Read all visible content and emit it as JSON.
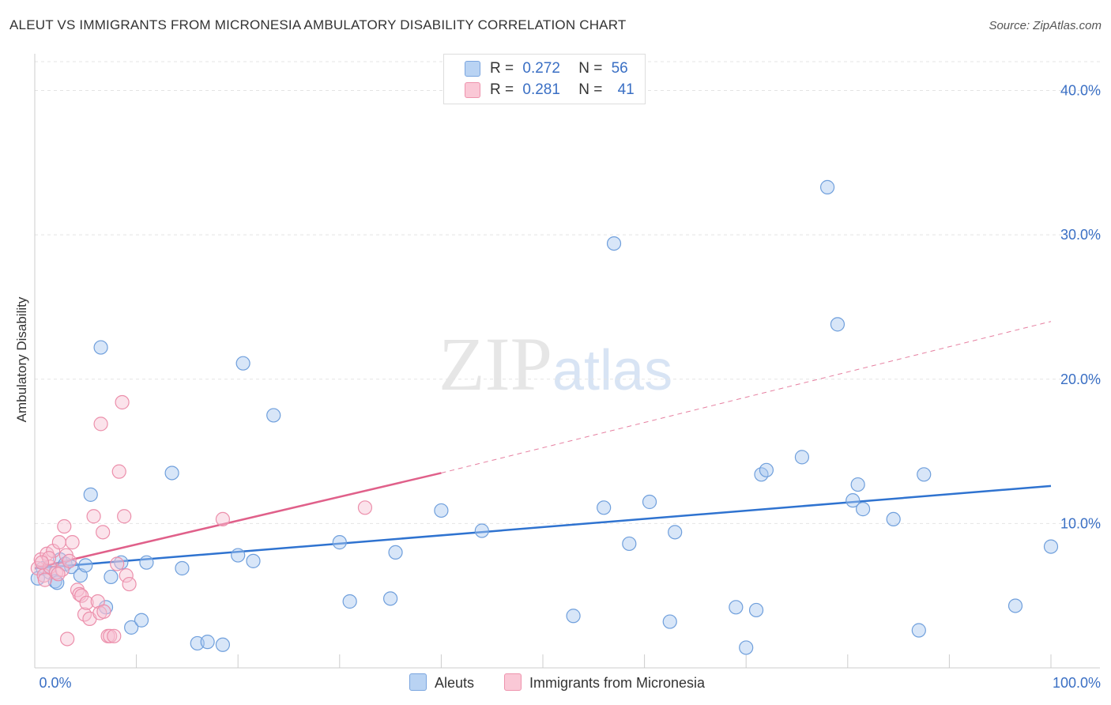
{
  "title": "ALEUT VS IMMIGRANTS FROM MICRONESIA AMBULATORY DISABILITY CORRELATION CHART",
  "source": "Source: ZipAtlas.com",
  "watermark": {
    "zip": "ZIP",
    "atlas": "atlas"
  },
  "legend": {
    "r_label": "R =",
    "n_label": "N =",
    "rows": [
      {
        "r": "0.272",
        "n": "56",
        "color": "#b9d3f3",
        "stroke": "#7aa5df"
      },
      {
        "r": "0.281",
        "n": "41",
        "color": "#fac8d6",
        "stroke": "#ee93ad"
      }
    ]
  },
  "bottom_legend": {
    "aleuts": "Aleuts",
    "micronesia": "Immigrants from Micronesia"
  },
  "chart_data": {
    "type": "scatter",
    "title": "ALEUT VS IMMIGRANTS FROM MICRONESIA AMBULATORY DISABILITY CORRELATION CHART",
    "xlabel": "",
    "ylabel": "Ambulatory Disability",
    "xlim": [
      0,
      100
    ],
    "ylim": [
      0,
      42
    ],
    "y_ticks": [
      10,
      20,
      30,
      40
    ],
    "y_tick_labels": [
      "10.0%",
      "20.0%",
      "30.0%",
      "40.0%"
    ],
    "x_tick_labels": {
      "left": "0.0%",
      "right": "100.0%"
    },
    "grid": true,
    "legend_position": "top-center",
    "series": [
      {
        "name": "Aleuts",
        "color": "#a9c8ef",
        "stroke": "#6f9fdc",
        "trend_color": "#2f73d0",
        "trend": {
          "x0": 0,
          "y0": 6.9,
          "x1": 100,
          "y1": 12.6
        },
        "points": [
          [
            0.3,
            6.2
          ],
          [
            0.8,
            6.9
          ],
          [
            1.5,
            6.6
          ],
          [
            2.0,
            6.0
          ],
          [
            2.5,
            7.5
          ],
          [
            3.0,
            7.2
          ],
          [
            3.6,
            7.0
          ],
          [
            4.5,
            6.4
          ],
          [
            5.5,
            12.0
          ],
          [
            6.5,
            22.2
          ],
          [
            7.0,
            4.2
          ],
          [
            7.5,
            6.3
          ],
          [
            8.5,
            7.3
          ],
          [
            9.5,
            2.8
          ],
          [
            10.5,
            3.3
          ],
          [
            11.0,
            7.3
          ],
          [
            13.5,
            13.5
          ],
          [
            14.5,
            6.9
          ],
          [
            16.0,
            1.7
          ],
          [
            17.0,
            1.8
          ],
          [
            18.5,
            1.6
          ],
          [
            20.0,
            7.8
          ],
          [
            20.5,
            21.1
          ],
          [
            21.5,
            7.4
          ],
          [
            23.5,
            17.5
          ],
          [
            30.0,
            8.7
          ],
          [
            31.0,
            4.6
          ],
          [
            35.0,
            4.8
          ],
          [
            35.5,
            8.0
          ],
          [
            40.0,
            10.9
          ],
          [
            44.0,
            9.5
          ],
          [
            53.0,
            3.6
          ],
          [
            56.0,
            11.1
          ],
          [
            57.0,
            29.4
          ],
          [
            58.5,
            8.6
          ],
          [
            60.5,
            11.5
          ],
          [
            62.5,
            3.2
          ],
          [
            63.0,
            9.4
          ],
          [
            69.0,
            4.2
          ],
          [
            70.0,
            1.4
          ],
          [
            71.0,
            4.0
          ],
          [
            71.5,
            13.4
          ],
          [
            72.0,
            13.7
          ],
          [
            75.5,
            14.6
          ],
          [
            78.0,
            33.3
          ],
          [
            79.0,
            23.8
          ],
          [
            80.5,
            11.6
          ],
          [
            81.0,
            12.7
          ],
          [
            81.5,
            11.0
          ],
          [
            84.5,
            10.3
          ],
          [
            87.0,
            2.6
          ],
          [
            87.5,
            13.4
          ],
          [
            96.5,
            4.3
          ],
          [
            100.0,
            8.4
          ],
          [
            5.0,
            7.1
          ],
          [
            2.2,
            5.9
          ]
        ]
      },
      {
        "name": "Immigrants from Micronesia",
        "color": "#f7c2d2",
        "stroke": "#ec8fab",
        "trend_color": "#e0608a",
        "trend": {
          "x0": 0,
          "y0": 6.9,
          "x1": 40,
          "y1": 13.5
        },
        "trend_dashed": {
          "x0": 40,
          "y0": 13.5,
          "x1": 100,
          "y1": 24.0
        },
        "points": [
          [
            0.3,
            6.9
          ],
          [
            0.6,
            7.5
          ],
          [
            0.9,
            6.4
          ],
          [
            1.2,
            7.9
          ],
          [
            1.5,
            7.0
          ],
          [
            1.8,
            8.1
          ],
          [
            2.1,
            6.6
          ],
          [
            2.4,
            8.7
          ],
          [
            2.7,
            6.8
          ],
          [
            2.9,
            9.8
          ],
          [
            3.1,
            7.8
          ],
          [
            3.4,
            7.4
          ],
          [
            3.7,
            8.7
          ],
          [
            4.2,
            5.4
          ],
          [
            4.4,
            5.1
          ],
          [
            4.6,
            5.0
          ],
          [
            4.9,
            3.7
          ],
          [
            5.1,
            4.5
          ],
          [
            5.4,
            3.4
          ],
          [
            5.8,
            10.5
          ],
          [
            6.2,
            4.6
          ],
          [
            6.4,
            3.8
          ],
          [
            6.8,
            3.9
          ],
          [
            6.5,
            16.9
          ],
          [
            6.7,
            9.4
          ],
          [
            7.2,
            2.2
          ],
          [
            7.4,
            2.2
          ],
          [
            7.8,
            2.2
          ],
          [
            8.1,
            7.2
          ],
          [
            8.3,
            13.6
          ],
          [
            8.6,
            18.4
          ],
          [
            8.8,
            10.5
          ],
          [
            9.0,
            6.4
          ],
          [
            9.3,
            5.8
          ],
          [
            1.0,
            6.1
          ],
          [
            1.4,
            7.6
          ],
          [
            2.3,
            6.5
          ],
          [
            3.2,
            2.0
          ],
          [
            18.5,
            10.3
          ],
          [
            32.5,
            11.1
          ],
          [
            0.7,
            7.3
          ]
        ]
      }
    ]
  }
}
